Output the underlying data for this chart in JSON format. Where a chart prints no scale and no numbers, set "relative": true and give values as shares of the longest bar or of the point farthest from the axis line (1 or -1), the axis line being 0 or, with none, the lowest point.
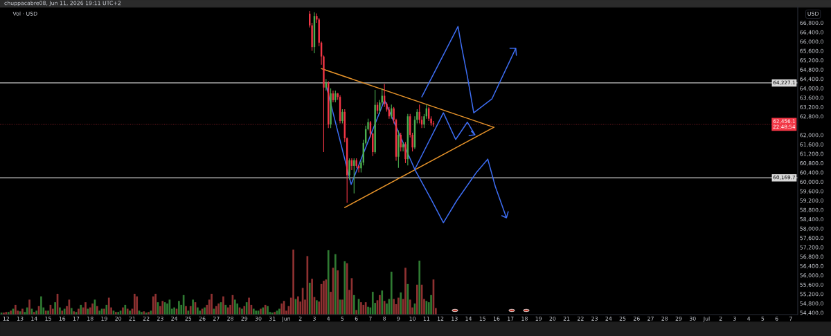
{
  "chart_data": [
    {
      "type": "candlestick",
      "title": "chuppacabre08, Jun 11, 2026 19:11 UTC+2",
      "annotations": [
        "Vol · USD",
        "USD"
      ],
      "x": [
        "2026-06-02T16:00",
        "2026-06-02T20:00",
        "2026-06-03T00:00",
        "2026-06-03T04:00",
        "2026-06-03T08:00",
        "2026-06-03T12:00",
        "2026-06-03T16:00",
        "2026-06-03T20:00",
        "2026-06-04T00:00",
        "2026-06-04T04:00",
        "2026-06-04T08:00",
        "2026-06-04T12:00",
        "2026-06-04T16:00",
        "2026-06-04T20:00",
        "2026-06-05T00:00",
        "2026-06-05T04:00",
        "2026-06-05T08:00",
        "2026-06-05T12:00",
        "2026-06-05T16:00",
        "2026-06-05T20:00",
        "2026-06-06T00:00",
        "2026-06-06T04:00",
        "2026-06-06T08:00",
        "2026-06-06T12:00",
        "2026-06-06T16:00",
        "2026-06-06T20:00",
        "2026-06-07T00:00",
        "2026-06-07T04:00",
        "2026-06-07T08:00",
        "2026-06-07T12:00",
        "2026-06-07T16:00",
        "2026-06-07T20:00",
        "2026-06-08T00:00",
        "2026-06-08T04:00",
        "2026-06-08T08:00",
        "2026-06-08T12:00",
        "2026-06-08T16:00",
        "2026-06-08T20:00",
        "2026-06-09T00:00",
        "2026-06-09T04:00",
        "2026-06-09T08:00",
        "2026-06-09T12:00",
        "2026-06-09T16:00",
        "2026-06-09T20:00",
        "2026-06-10T00:00",
        "2026-06-10T04:00",
        "2026-06-10T08:00",
        "2026-06-10T12:00",
        "2026-06-10T16:00",
        "2026-06-10T20:00",
        "2026-06-11T00:00",
        "2026-06-11T04:00",
        "2026-06-11T08:00",
        "2026-06-11T12:00"
      ],
      "ohlc": [
        [
          67190,
          67300,
          66600,
          66690
        ],
        [
          66690,
          66800,
          65600,
          65760
        ],
        [
          65760,
          67250,
          65500,
          67090
        ],
        [
          67090,
          67200,
          66800,
          66940
        ],
        [
          66940,
          67000,
          65800,
          65950
        ],
        [
          65950,
          66000,
          65000,
          65360
        ],
        [
          65360,
          65400,
          61270,
          64030
        ],
        [
          64030,
          64400,
          63900,
          64230
        ],
        [
          64230,
          64300,
          62300,
          62450
        ],
        [
          62450,
          64000,
          62300,
          63780
        ],
        [
          63780,
          63900,
          63400,
          63490
        ],
        [
          63490,
          63900,
          63400,
          63780
        ],
        [
          63780,
          63800,
          63500,
          63630
        ],
        [
          63630,
          63700,
          62500,
          62600
        ],
        [
          62600,
          63100,
          62500,
          62990
        ],
        [
          62990,
          63100,
          61700,
          61860
        ],
        [
          61860,
          61900,
          59100,
          60280
        ],
        [
          60280,
          61000,
          60100,
          60920
        ],
        [
          60920,
          61000,
          60500,
          60680
        ],
        [
          60680,
          61000,
          59500,
          60920
        ],
        [
          60920,
          61000,
          60600,
          60680
        ],
        [
          60680,
          60700,
          60400,
          60580
        ],
        [
          60580,
          60900,
          60400,
          60820
        ],
        [
          60820,
          61800,
          60700,
          61660
        ],
        [
          61660,
          62400,
          61600,
          62250
        ],
        [
          62250,
          62700,
          62200,
          62550
        ],
        [
          62550,
          62600,
          61900,
          62060
        ],
        [
          62060,
          62100,
          61100,
          61270
        ],
        [
          61270,
          63930,
          61200,
          63290
        ],
        [
          63290,
          63400,
          62900,
          63040
        ],
        [
          63040,
          63500,
          62900,
          63390
        ],
        [
          63390,
          64000,
          63300,
          63680
        ],
        [
          63680,
          64180,
          63200,
          63340
        ],
        [
          63340,
          63400,
          63000,
          63090
        ],
        [
          63090,
          63200,
          62700,
          62800
        ],
        [
          62800,
          63300,
          62700,
          63140
        ],
        [
          63140,
          63200,
          62500,
          62650
        ],
        [
          62650,
          62700,
          60900,
          61070
        ],
        [
          61070,
          62200,
          60600,
          62010
        ],
        [
          62010,
          62100,
          61300,
          61470
        ],
        [
          61470,
          61700,
          61300,
          61610
        ],
        [
          61610,
          61700,
          60800,
          60970
        ],
        [
          60970,
          62900,
          60700,
          62800
        ],
        [
          62800,
          62900,
          61900,
          62010
        ],
        [
          62010,
          62100,
          61300,
          61470
        ],
        [
          61470,
          62800,
          61400,
          62650
        ],
        [
          62650,
          63100,
          62500,
          62990
        ],
        [
          62990,
          63300,
          62500,
          62650
        ],
        [
          62650,
          62800,
          62300,
          62450
        ],
        [
          62450,
          62900,
          62300,
          62800
        ],
        [
          62800,
          63300,
          62700,
          63140
        ],
        [
          63140,
          63200,
          62600,
          62700
        ],
        [
          62700,
          62800,
          62400,
          62500
        ],
        [
          62500,
          62600,
          62350,
          62460
        ]
      ],
      "colors": [
        "#f23645",
        "#f23645",
        "#4caf50",
        "#f23645",
        "#f23645",
        "#f23645",
        "#f23645",
        "#4caf50",
        "#f23645",
        "#4caf50",
        "#f23645",
        "#4caf50",
        "#f23645",
        "#f23645",
        "#4caf50",
        "#f23645",
        "#f23645",
        "#4caf50",
        "#f23645",
        "#4caf50",
        "#f23645",
        "#f23645",
        "#4caf50",
        "#4caf50",
        "#4caf50",
        "#4caf50",
        "#f23645",
        "#f23645",
        "#4caf50",
        "#f23645",
        "#4caf50",
        "#4caf50",
        "#f23645",
        "#f23645",
        "#f23645",
        "#4caf50",
        "#f23645",
        "#f23645",
        "#4caf50",
        "#f23645",
        "#4caf50",
        "#f23645",
        "#4caf50",
        "#f23645",
        "#f23645",
        "#4caf50",
        "#4caf50",
        "#f23645",
        "#f23645",
        "#4caf50",
        "#4caf50",
        "#f23645",
        "#f23645",
        "#f23645"
      ],
      "series": [
        {
          "type": "line",
          "color": "#e8942a",
          "x": [
            "2026-06-03T12:00",
            "2026-06-15T19:30"
          ],
          "values": [
            64840,
            62330
          ]
        },
        {
          "type": "line",
          "color": "#e8942a",
          "x": [
            "2026-06-05T04:00",
            "2026-06-15T19:30"
          ],
          "values": [
            58900,
            62330
          ]
        },
        {
          "type": "line",
          "color": "#3d6df2",
          "x": [
            "2026-06-03T21:00",
            "2026-06-05T15:00",
            "2026-06-08T00:00",
            "2026-06-10T04:00",
            "2026-06-12T05:00",
            "2026-06-13T02:00",
            "2026-06-13T22:00",
            "2026-06-14T11:00",
            "2026-06-14T01:00",
            "2026-06-14T11:00",
            "2026-06-14T05:00"
          ],
          "values": [
            64030,
            59890,
            63490,
            60530,
            62950,
            61810,
            62550,
            62010,
            61980,
            62010,
            62160
          ]
        },
        {
          "type": "line",
          "color": "#3d6df2",
          "x": [
            "2026-06-10T16:00",
            "2026-06-13T06:00",
            "2026-06-13T12:00",
            "2026-06-13T22:00",
            "2026-06-14T09:00",
            "2026-06-15T16:00",
            "2026-06-17T09:00",
            "2026-06-16T23:00",
            "2026-06-17T09:00",
            "2026-06-17T10:00"
          ],
          "values": [
            63630,
            66640,
            65800,
            64520,
            62950,
            63540,
            65710,
            65710,
            65710,
            65410
          ]
        },
        {
          "type": "line",
          "color": "#3d6df2",
          "x": [
            "2026-06-10T04:00",
            "2026-06-11T09:00",
            "2026-06-12T05:00",
            "2026-06-13T04:00",
            "2026-06-14T13:00",
            "2026-06-15T09:00",
            "2026-06-15T22:00",
            "2026-06-16T17:00",
            "2026-06-16T09:00",
            "2026-06-16T17:00",
            "2026-06-16T20:00"
          ],
          "values": [
            60530,
            59200,
            58250,
            59200,
            60380,
            60970,
            59790,
            58460,
            58550,
            58460,
            58720
          ]
        }
      ],
      "ref_lines": [
        {
          "axis": "y",
          "value": 64227.1,
          "label": "64,227.1",
          "color": "#d9d9d9",
          "line_style": "solid"
        },
        {
          "axis": "y",
          "value": 60169.7,
          "label": "60,169.7",
          "color": "#d9d9d9",
          "line_style": "solid"
        },
        {
          "axis": "y",
          "value": 62456.1,
          "label": "62,456.1\n22:48:54",
          "color": "#f23645",
          "line_style": "dotted"
        }
      ],
      "xlim": [
        "2026-05-11T13:30",
        "2026-07-07T12:00"
      ],
      "ylim": [
        54320,
        67480
      ],
      "xticks": [
        {
          "value": "2026-05-12",
          "label": "12"
        },
        {
          "value": "2026-05-13",
          "label": "13"
        },
        {
          "value": "2026-05-14",
          "label": "14"
        },
        {
          "value": "2026-05-15",
          "label": "15"
        },
        {
          "value": "2026-05-16",
          "label": "16"
        },
        {
          "value": "2026-05-17",
          "label": "17"
        },
        {
          "value": "2026-05-18",
          "label": "18"
        },
        {
          "value": "2026-05-19",
          "label": "19"
        },
        {
          "value": "2026-05-20",
          "label": "20"
        },
        {
          "value": "2026-05-21",
          "label": "21"
        },
        {
          "value": "2026-05-22",
          "label": "22"
        },
        {
          "value": "2026-05-23",
          "label": "23"
        },
        {
          "value": "2026-05-24",
          "label": "24"
        },
        {
          "value": "2026-05-25",
          "label": "25"
        },
        {
          "value": "2026-05-26",
          "label": "26"
        },
        {
          "value": "2026-05-27",
          "label": "27"
        },
        {
          "value": "2026-05-28",
          "label": "28"
        },
        {
          "value": "2026-05-29",
          "label": "29"
        },
        {
          "value": "2026-05-30",
          "label": "30"
        },
        {
          "value": "2026-05-31",
          "label": "31"
        },
        {
          "value": "2026-06-01",
          "label": "Jun"
        },
        {
          "value": "2026-06-02",
          "label": "2"
        },
        {
          "value": "2026-06-03",
          "label": "3"
        },
        {
          "value": "2026-06-04",
          "label": "4"
        },
        {
          "value": "2026-06-05",
          "label": "5"
        },
        {
          "value": "2026-06-06",
          "label": "6"
        },
        {
          "value": "2026-06-07",
          "label": "7"
        },
        {
          "value": "2026-06-08",
          "label": "8"
        },
        {
          "value": "2026-06-09",
          "label": "9"
        },
        {
          "value": "2026-06-10",
          "label": "10"
        },
        {
          "value": "2026-06-11",
          "label": "11"
        },
        {
          "value": "2026-06-12",
          "label": "12"
        },
        {
          "value": "2026-06-13",
          "label": "13"
        },
        {
          "value": "2026-06-14",
          "label": "14"
        },
        {
          "value": "2026-06-15",
          "label": "15"
        },
        {
          "value": "2026-06-16",
          "label": "16"
        },
        {
          "value": "2026-06-17",
          "label": "17"
        },
        {
          "value": "2026-06-18",
          "label": "18"
        },
        {
          "value": "2026-06-19",
          "label": "19"
        },
        {
          "value": "2026-06-20",
          "label": "20"
        },
        {
          "value": "2026-06-21",
          "label": "21"
        },
        {
          "value": "2026-06-22",
          "label": "22"
        },
        {
          "value": "2026-06-23",
          "label": "23"
        },
        {
          "value": "2026-06-24",
          "label": "24"
        },
        {
          "value": "2026-06-25",
          "label": "25"
        },
        {
          "value": "2026-06-26",
          "label": "26"
        },
        {
          "value": "2026-06-27",
          "label": "27"
        },
        {
          "value": "2026-06-28",
          "label": "28"
        },
        {
          "value": "2026-06-29",
          "label": "29"
        },
        {
          "value": "2026-06-30",
          "label": "30"
        },
        {
          "value": "2026-07-01",
          "label": "Jul"
        },
        {
          "value": "2026-07-02",
          "label": "2"
        },
        {
          "value": "2026-07-03",
          "label": "3"
        },
        {
          "value": "2026-07-04",
          "label": "4"
        },
        {
          "value": "2026-07-05",
          "label": "5"
        },
        {
          "value": "2026-07-06",
          "label": "6"
        },
        {
          "value": "2026-07-07",
          "label": "7"
        }
      ],
      "yticks": [
        {
          "value": 54400,
          "label": "54,400.0"
        },
        {
          "value": 54800,
          "label": "54,800.0"
        },
        {
          "value": 55200,
          "label": "55,200.0"
        },
        {
          "value": 55600,
          "label": "55,600.0"
        },
        {
          "value": 56000,
          "label": "56,000.0"
        },
        {
          "value": 56400,
          "label": "56,400.0"
        },
        {
          "value": 56800,
          "label": "56,800.0"
        },
        {
          "value": 57200,
          "label": "57,200.0"
        },
        {
          "value": 57600,
          "label": "57,600.0"
        },
        {
          "value": 58000,
          "label": "58,000.0"
        },
        {
          "value": 58400,
          "label": "58,400.0"
        },
        {
          "value": 58800,
          "label": "58,800.0"
        },
        {
          "value": 59200,
          "label": "59,200.0"
        },
        {
          "value": 59600,
          "label": "59,600.0"
        },
        {
          "value": 60000,
          "label": "60,000.0"
        },
        {
          "value": 60400,
          "label": "60,400.0"
        },
        {
          "value": 60800,
          "label": "60,800.0"
        },
        {
          "value": 61200,
          "label": "61,200.0"
        },
        {
          "value": 61600,
          "label": "61,600.0"
        },
        {
          "value": 62000,
          "label": "62,000.0"
        },
        {
          "value": 62800,
          "label": "62,800.0"
        },
        {
          "value": 63200,
          "label": "63,200.0"
        },
        {
          "value": 63600,
          "label": "63,600.0"
        },
        {
          "value": 64000,
          "label": "64,000.0"
        },
        {
          "value": 64400,
          "label": "64,400.0"
        },
        {
          "value": 64800,
          "label": "64,800.0"
        },
        {
          "value": 65200,
          "label": "65,200.0"
        },
        {
          "value": 65600,
          "label": "65,600.0"
        },
        {
          "value": 66000,
          "label": "66,000.0"
        },
        {
          "value": 66400,
          "label": "66,400.0"
        },
        {
          "value": 66800,
          "label": "66,800.0"
        }
      ]
    },
    {
      "type": "bar",
      "relative": true,
      "xlim": [
        "2026-05-11T13:30",
        "2026-07-07T12:00"
      ],
      "x": [
        "2026-05-11T16:00",
        "2026-05-11T20:00",
        "2026-05-12T00:00",
        "2026-05-12T04:00",
        "2026-05-12T08:00",
        "2026-05-12T12:00",
        "2026-05-12T16:00",
        "2026-05-12T20:00",
        "2026-05-13T00:00",
        "2026-05-13T04:00",
        "2026-05-13T08:00",
        "2026-05-13T12:00",
        "2026-05-13T16:00",
        "2026-05-13T20:00",
        "2026-05-14T00:00",
        "2026-05-14T04:00",
        "2026-05-14T08:00",
        "2026-05-14T12:00",
        "2026-05-14T16:00",
        "2026-05-14T20:00",
        "2026-05-15T00:00",
        "2026-05-15T04:00",
        "2026-05-15T08:00",
        "2026-05-15T12:00",
        "2026-05-15T16:00",
        "2026-05-15T20:00",
        "2026-05-16T00:00",
        "2026-05-16T04:00",
        "2026-05-16T08:00",
        "2026-05-16T12:00",
        "2026-05-16T16:00",
        "2026-05-16T20:00",
        "2026-05-17T00:00",
        "2026-05-17T04:00",
        "2026-05-17T08:00",
        "2026-05-17T12:00",
        "2026-05-17T16:00",
        "2026-05-17T20:00",
        "2026-05-18T00:00",
        "2026-05-18T04:00",
        "2026-05-18T08:00",
        "2026-05-18T12:00",
        "2026-05-18T16:00",
        "2026-05-18T20:00",
        "2026-05-19T00:00",
        "2026-05-19T04:00",
        "2026-05-19T08:00",
        "2026-05-19T12:00",
        "2026-05-19T16:00",
        "2026-05-19T20:00",
        "2026-05-20T00:00",
        "2026-05-20T04:00",
        "2026-05-20T08:00",
        "2026-05-20T12:00",
        "2026-05-20T16:00",
        "2026-05-20T20:00",
        "2026-05-21T00:00",
        "2026-05-21T04:00",
        "2026-05-21T08:00",
        "2026-05-21T12:00",
        "2026-05-21T16:00",
        "2026-05-21T20:00",
        "2026-05-22T00:00",
        "2026-05-22T04:00",
        "2026-05-22T08:00",
        "2026-05-22T12:00",
        "2026-05-22T16:00",
        "2026-05-22T20:00",
        "2026-05-23T00:00",
        "2026-05-23T04:00",
        "2026-05-23T08:00",
        "2026-05-23T12:00",
        "2026-05-23T16:00",
        "2026-05-23T20:00",
        "2026-05-24T00:00",
        "2026-05-24T04:00",
        "2026-05-24T08:00",
        "2026-05-24T12:00",
        "2026-05-24T16:00",
        "2026-05-24T20:00",
        "2026-05-25T00:00",
        "2026-05-25T04:00",
        "2026-05-25T08:00",
        "2026-05-25T12:00",
        "2026-05-25T16:00",
        "2026-05-25T20:00",
        "2026-05-26T00:00",
        "2026-05-26T04:00",
        "2026-05-26T08:00",
        "2026-05-26T12:00",
        "2026-05-26T16:00",
        "2026-05-26T20:00",
        "2026-05-27T00:00",
        "2026-05-27T04:00",
        "2026-05-27T08:00",
        "2026-05-27T12:00",
        "2026-05-27T16:00",
        "2026-05-27T20:00",
        "2026-05-28T00:00",
        "2026-05-28T04:00",
        "2026-05-28T08:00",
        "2026-05-28T12:00",
        "2026-05-28T16:00",
        "2026-05-28T20:00",
        "2026-05-29T00:00",
        "2026-05-29T04:00",
        "2026-05-29T08:00",
        "2026-05-29T12:00",
        "2026-05-29T16:00",
        "2026-05-29T20:00",
        "2026-05-30T00:00",
        "2026-05-30T04:00",
        "2026-05-30T08:00",
        "2026-05-30T12:00",
        "2026-05-30T16:00",
        "2026-05-30T20:00",
        "2026-05-31T00:00",
        "2026-05-31T04:00",
        "2026-05-31T08:00",
        "2026-05-31T12:00",
        "2026-05-31T16:00",
        "2026-05-31T20:00",
        "2026-06-01T00:00",
        "2026-06-01T04:00",
        "2026-06-01T08:00",
        "2026-06-01T12:00",
        "2026-06-01T16:00",
        "2026-06-01T20:00",
        "2026-06-02T00:00",
        "2026-06-02T04:00",
        "2026-06-02T08:00",
        "2026-06-02T12:00",
        "2026-06-02T16:00",
        "2026-06-02T20:00",
        "2026-06-03T00:00",
        "2026-06-03T04:00",
        "2026-06-03T08:00",
        "2026-06-03T12:00",
        "2026-06-03T16:00",
        "2026-06-03T20:00",
        "2026-06-04T00:00",
        "2026-06-04T04:00",
        "2026-06-04T08:00",
        "2026-06-04T12:00",
        "2026-06-04T16:00",
        "2026-06-04T20:00",
        "2026-06-05T00:00",
        "2026-06-05T04:00",
        "2026-06-05T08:00",
        "2026-06-05T12:00",
        "2026-06-05T16:00",
        "2026-06-05T20:00",
        "2026-06-06T00:00",
        "2026-06-06T04:00",
        "2026-06-06T08:00",
        "2026-06-06T12:00",
        "2026-06-06T16:00",
        "2026-06-06T20:00",
        "2026-06-07T00:00",
        "2026-06-07T04:00",
        "2026-06-07T08:00",
        "2026-06-07T12:00",
        "2026-06-07T16:00",
        "2026-06-07T20:00",
        "2026-06-08T00:00",
        "2026-06-08T04:00",
        "2026-06-08T08:00",
        "2026-06-08T12:00",
        "2026-06-08T16:00",
        "2026-06-08T20:00",
        "2026-06-09T00:00",
        "2026-06-09T04:00",
        "2026-06-09T08:00",
        "2026-06-09T12:00",
        "2026-06-09T16:00",
        "2026-06-09T20:00",
        "2026-06-10T00:00",
        "2026-06-10T04:00",
        "2026-06-10T08:00",
        "2026-06-10T12:00",
        "2026-06-10T16:00",
        "2026-06-10T20:00",
        "2026-06-11T00:00",
        "2026-06-11T04:00",
        "2026-06-11T08:00",
        "2026-06-11T12:00",
        "2026-06-11T16:00"
      ],
      "values": [
        0.03,
        0.03,
        0.04,
        0.04,
        0.06,
        0.09,
        0.15,
        0.06,
        0.05,
        0.09,
        0.04,
        0.11,
        0.23,
        0.09,
        0.04,
        0.06,
        0.13,
        0.28,
        0.11,
        0.06,
        0.06,
        0.15,
        0.09,
        0.19,
        0.32,
        0.11,
        0.06,
        0.09,
        0.13,
        0.23,
        0.1,
        0.05,
        0.04,
        0.09,
        0.15,
        0.11,
        0.19,
        0.09,
        0.11,
        0.17,
        0.23,
        0.13,
        0.06,
        0.09,
        0.09,
        0.15,
        0.26,
        0.11,
        0.06,
        0.04,
        0.04,
        0.06,
        0.11,
        0.15,
        0.09,
        0.06,
        0.09,
        0.32,
        0.28,
        0.06,
        0.04,
        0.05,
        0.03,
        0.04,
        0.06,
        0.28,
        0.32,
        0.19,
        0.13,
        0.21,
        0.19,
        0.17,
        0.23,
        0.09,
        0.11,
        0.09,
        0.21,
        0.15,
        0.3,
        0.13,
        0.06,
        0.13,
        0.23,
        0.19,
        0.11,
        0.06,
        0.09,
        0.11,
        0.15,
        0.23,
        0.32,
        0.09,
        0.13,
        0.17,
        0.19,
        0.28,
        0.15,
        0.11,
        0.15,
        0.3,
        0.23,
        0.17,
        0.11,
        0.09,
        0.13,
        0.19,
        0.26,
        0.15,
        0.09,
        0.06,
        0.06,
        0.09,
        0.11,
        0.15,
        0.13,
        0.04,
        0.03,
        0.04,
        0.06,
        0.09,
        0.17,
        0.21,
        0.06,
        0.13,
        0.26,
        1,
        0.24,
        0.28,
        0.2,
        0.41,
        0.23,
        0.9,
        0.49,
        0.55,
        0.27,
        0.22,
        0.2,
        0.47,
        0.52,
        0.54,
        0.99,
        0.35,
        0.72,
        0.93,
        0.68,
        0.23,
        0.23,
        0.82,
        0.79,
        0.38,
        0.56,
        0.3,
        0.07,
        0.24,
        0.19,
        0.15,
        0.19,
        0.12,
        0.11,
        0.35,
        0.18,
        0.22,
        0.3,
        0.37,
        0.21,
        0.17,
        0.24,
        0.66,
        0.24,
        0.16,
        0.26,
        0.34,
        0.24,
        0.72,
        0.47,
        0.23,
        0.11,
        0.17,
        0.46,
        0.83,
        0.46,
        0.24,
        0.21,
        0.19,
        0.3,
        0.54,
        0.1
      ],
      "colors": [
        "#2f7a32",
        "#8e3131",
        "#8e3131",
        "#2f7a32",
        "#8e3131",
        "#2f7a32",
        "#8e3131",
        "#8e3131",
        "#2f7a32",
        "#8e3131",
        "#2f7a32",
        "#2f7a32",
        "#8e3131",
        "#2f7a32",
        "#8e3131",
        "#2f7a32",
        "#8e3131",
        "#2f7a32",
        "#2f7a32",
        "#8e3131",
        "#2f7a32",
        "#8e3131",
        "#8e3131",
        "#2f7a32",
        "#8e3131",
        "#2f7a32",
        "#8e3131",
        "#2f7a32",
        "#8e3131",
        "#8e3131",
        "#2f7a32",
        "#8e3131",
        "#2f7a32",
        "#8e3131",
        "#2f7a32",
        "#8e3131",
        "#8e3131",
        "#2f7a32",
        "#8e3131",
        "#8e3131",
        "#2f7a32",
        "#8e3131",
        "#2f7a32",
        "#2f7a32",
        "#8e3131",
        "#2f7a32",
        "#8e3131",
        "#8e3131",
        "#2f7a32",
        "#8e3131",
        "#2f7a32",
        "#2f7a32",
        "#8e3131",
        "#2f7a32",
        "#8e3131",
        "#2f7a32",
        "#8e3131",
        "#8e3131",
        "#8e3131",
        "#2f7a32",
        "#2f7a32",
        "#8e3131",
        "#2f7a32",
        "#8e3131",
        "#2f7a32",
        "#8e3131",
        "#8e3131",
        "#2f7a32",
        "#8e3131",
        "#8e3131",
        "#2f7a32",
        "#2f7a32",
        "#2f7a32",
        "#2f7a32",
        "#2f7a32",
        "#8e3131",
        "#2f7a32",
        "#2f7a32",
        "#2f7a32",
        "#8e3131",
        "#2f7a32",
        "#8e3131",
        "#2f7a32",
        "#8e3131",
        "#2f7a32",
        "#2f7a32",
        "#8e3131",
        "#2f7a32",
        "#8e3131",
        "#8e3131",
        "#8e3131",
        "#2f7a32",
        "#8e3131",
        "#8e3131",
        "#2f7a32",
        "#8e3131",
        "#2f7a32",
        "#8e3131",
        "#8e3131",
        "#8e3131",
        "#2f7a32",
        "#2f7a32",
        "#8e3131",
        "#2f7a32",
        "#8e3131",
        "#2f7a32",
        "#8e3131",
        "#8e3131",
        "#2f7a32",
        "#2f7a32",
        "#2f7a32",
        "#8e3131",
        "#2f7a32",
        "#8e3131",
        "#2f7a32",
        "#2f7a32",
        "#2f7a32",
        "#8e3131",
        "#2f7a32",
        "#2f7a32",
        "#8e3131",
        "#8e3131",
        "#8e3131",
        "#8e3131",
        "#8e3131",
        "#8e3131",
        "#2f7a32",
        "#8e3131",
        "#8e3131",
        "#8e3131",
        "#8e3131",
        "#8e3131",
        "#2f7a32",
        "#8e3131",
        "#8e3131",
        "#2f7a32",
        "#8e3131",
        "#8e3131",
        "#8e3131",
        "#8e3131",
        "#2f7a32",
        "#8e3131",
        "#8e3131",
        "#2f7a32",
        "#8e3131",
        "#2f7a32",
        "#8e3131",
        "#2f7a32",
        "#8e3131",
        "#8e3131",
        "#8e3131",
        "#2f7a32",
        "#8e3131",
        "#2f7a32",
        "#8e3131",
        "#8e3131",
        "#8e3131",
        "#2f7a32",
        "#2f7a32",
        "#2f7a32",
        "#2f7a32",
        "#8e3131",
        "#8e3131",
        "#2f7a32",
        "#8e3131",
        "#2f7a32",
        "#2f7a32",
        "#2f7a32",
        "#8e3131",
        "#8e3131",
        "#8e3131",
        "#2f7a32",
        "#8e3131",
        "#8e3131",
        "#2f7a32",
        "#8e3131",
        "#8e3131",
        "#2f7a32",
        "#8e3131",
        "#2f7a32",
        "#8e3131",
        "#8e3131",
        "#2f7a32",
        "#2f7a32",
        "#2f7a32",
        "#8e3131",
        "#8e3131"
      ]
    }
  ]
}
